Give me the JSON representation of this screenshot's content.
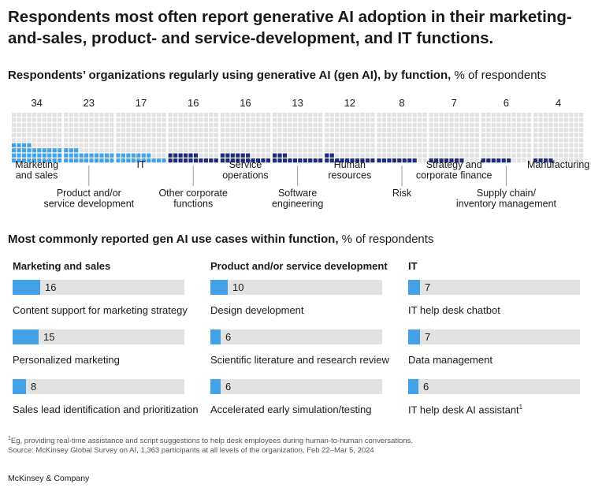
{
  "title": "Respondents most often report generative AI adoption in their marketing-and-sales, product- and service-development, and IT functions.",
  "chart1": {
    "subtitle_bold": "Respondents’ organizations regularly using generative AI (gen AI), by function,",
    "subtitle_unit": " % of respondents"
  },
  "chart2": {
    "subtitle_bold": "Most commonly reported gen AI use cases within function,",
    "subtitle_unit": " % of respondents"
  },
  "colors": {
    "light_blue": "#43a1e8",
    "dark_navy": "#1c2a7a",
    "grey_cell": "#e2e2e2"
  },
  "chart_data": [
    {
      "type": "waffle",
      "title": "Respondents’ organizations regularly using generative AI (gen AI), by function",
      "unit": "% of respondents",
      "categories": [
        {
          "name": "Marketing\nand sales",
          "value": 34,
          "highlight": true
        },
        {
          "name": "Product and/or\nservice development",
          "value": 23,
          "highlight": true
        },
        {
          "name": "IT",
          "value": 17,
          "highlight": true
        },
        {
          "name": "Other corporate\nfunctions",
          "value": 16,
          "highlight": false
        },
        {
          "name": "Service\noperations",
          "value": 16,
          "highlight": false
        },
        {
          "name": "Software\nengineering",
          "value": 13,
          "highlight": false
        },
        {
          "name": "Human\nresources",
          "value": 12,
          "highlight": false
        },
        {
          "name": "Risk",
          "value": 8,
          "highlight": false
        },
        {
          "name": "Strategy and\ncorporate finance",
          "value": 7,
          "highlight": false
        },
        {
          "name": "Supply chain/\ninventory management",
          "value": 6,
          "highlight": false
        },
        {
          "name": "Manufacturing",
          "value": 4,
          "highlight": false
        }
      ]
    },
    {
      "type": "bar",
      "title": "Most commonly reported gen AI use cases within function",
      "unit": "% of respondents",
      "groups": [
        {
          "function": "Marketing and sales",
          "items": [
            {
              "label": "Content support for marketing strategy",
              "value": 16
            },
            {
              "label": "Personalized marketing",
              "value": 15
            },
            {
              "label": "Sales lead identification and prioritization",
              "value": 8
            }
          ]
        },
        {
          "function": "Product and/or service development",
          "items": [
            {
              "label": "Design development",
              "value": 10
            },
            {
              "label": "Scientific literature and research review",
              "value": 6
            },
            {
              "label": "Accelerated early simulation/testing",
              "value": 6
            }
          ]
        },
        {
          "function": "IT",
          "items": [
            {
              "label": "IT help desk chatbot",
              "value": 7
            },
            {
              "label": "Data management",
              "value": 7
            },
            {
              "label": "IT help desk AI assistant",
              "value": 6,
              "footnote_marker": "1"
            }
          ]
        }
      ],
      "xlim": [
        0,
        100
      ]
    }
  ],
  "footnote": {
    "marker": "1",
    "line1": "Eg, providing real-time assistance and script suggestions to help desk employees during human-to-human conversations.",
    "line2": "Source: McKinsey Global Survey on AI, 1,363 participants at all levels of the organization, Feb 22–Mar 5, 2024"
  },
  "brand": "McKinsey & Company"
}
